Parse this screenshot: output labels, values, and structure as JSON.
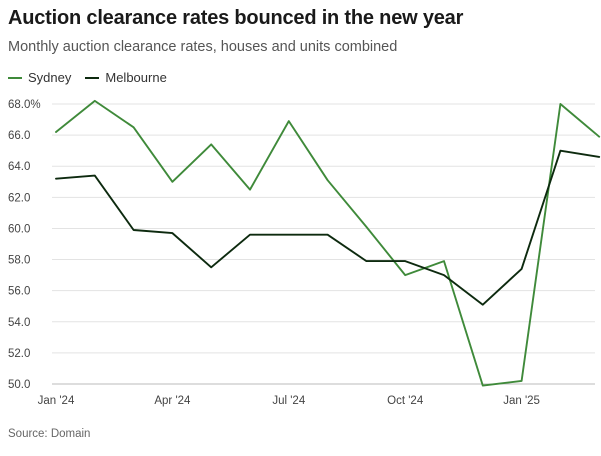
{
  "title": "Auction clearance rates bounced in the new year",
  "subtitle": "Monthly auction clearance rates, houses and units combined",
  "source": "Source: Domain",
  "chart_data": {
    "type": "line",
    "title": "Auction clearance rates bounced in the new year",
    "subtitle": "Monthly auction clearance rates, houses and units combined",
    "xlabel": "",
    "ylabel": "",
    "ylim": [
      50,
      68
    ],
    "y_ticks": [
      50,
      52,
      54,
      56,
      58,
      60,
      62,
      64,
      66,
      68
    ],
    "y_tick_labels": [
      "50.0",
      "52.0",
      "54.0",
      "56.0",
      "58.0",
      "60.0",
      "62.0",
      "64.0",
      "66.0",
      "68.0%"
    ],
    "x_months": [
      "2024-01",
      "2024-02",
      "2024-03",
      "2024-04",
      "2024-05",
      "2024-06",
      "2024-07",
      "2024-08",
      "2024-09",
      "2024-10",
      "2024-11",
      "2024-12",
      "2025-01",
      "2025-02",
      "2025-03"
    ],
    "x_ticks": [
      "2024-01",
      "2024-04",
      "2024-07",
      "2024-10",
      "2025-01"
    ],
    "x_tick_labels": [
      "Jan '24",
      "Apr '24",
      "Jul '24",
      "Oct '24",
      "Jan '25"
    ],
    "grid": "horizontal",
    "legend": "top-left",
    "series": [
      {
        "name": "Sydney",
        "color": "#3f8a3a",
        "values": [
          66.2,
          68.2,
          66.5,
          63.0,
          65.4,
          62.5,
          66.9,
          63.1,
          60.1,
          57.0,
          57.9,
          49.9,
          50.2,
          68.0,
          65.9
        ]
      },
      {
        "name": "Melbourne",
        "color": "#0d2a0f",
        "values": [
          63.2,
          63.4,
          59.9,
          59.7,
          57.5,
          59.6,
          59.6,
          59.6,
          57.9,
          57.9,
          57.0,
          55.1,
          57.4,
          65.0,
          64.6
        ]
      }
    ]
  }
}
